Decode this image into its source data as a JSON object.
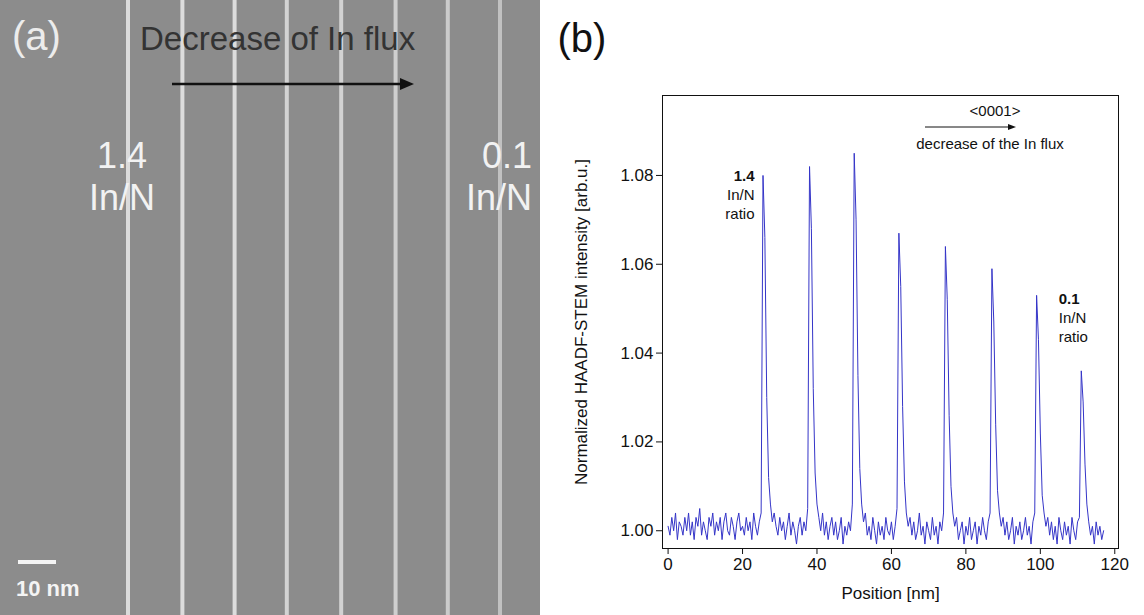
{
  "panel_a": {
    "label": "(a)",
    "arrow_text": "Decrease of In flux",
    "left_annotation": [
      "1.4",
      "In/N"
    ],
    "right_annotation": [
      "0.1",
      "In/N"
    ],
    "scale_bar": "10 nm"
  },
  "chart_data": {
    "type": "line",
    "panel_label": "(b)",
    "x_label": "Position [nm]",
    "y_label": "Normalized HAADF-STEM intensity [arb.u.]",
    "color": "#3535c8",
    "annotations": {
      "left": [
        "1.4",
        "In/N",
        "ratio"
      ],
      "right": [
        "0.1",
        "In/N",
        "ratio"
      ],
      "direction": "<0001>",
      "direction_text": "decrease of the In flux"
    },
    "xlim": [
      -1.5,
      121
    ],
    "xticks": [
      0,
      20,
      40,
      60,
      80,
      100,
      120
    ],
    "ylim": [
      0.996,
      1.098
    ],
    "yticks": [
      {
        "value": 1.0,
        "label": "1.00"
      },
      {
        "value": 1.02,
        "label": "1.02"
      },
      {
        "value": 1.04,
        "label": "1.04"
      },
      {
        "value": 1.06,
        "label": "1.06"
      },
      {
        "value": 1.08,
        "label": "1.08"
      }
    ],
    "x": [
      0,
      0.5,
      1,
      1.5,
      2,
      2.5,
      3,
      3.5,
      4,
      4.5,
      5,
      5.5,
      6,
      6.5,
      7,
      7.5,
      8,
      8.5,
      9,
      9.5,
      10,
      10.5,
      11,
      11.5,
      12,
      12.5,
      13,
      13.5,
      14,
      14.5,
      15,
      15.5,
      16,
      16.5,
      17,
      17.5,
      18,
      18.5,
      19,
      19.5,
      20,
      20.5,
      21,
      21.5,
      22,
      22.5,
      23,
      23.5,
      24,
      24.5,
      25,
      25.5,
      26,
      26.5,
      27,
      27.5,
      28,
      28.5,
      29,
      29.5,
      30,
      30.5,
      31,
      31.5,
      32,
      32.5,
      33,
      33.5,
      34,
      34.5,
      35,
      35.5,
      36,
      36.5,
      37,
      37.5,
      38,
      38.5,
      39,
      39.5,
      40,
      40.5,
      41,
      41.5,
      42,
      42.5,
      43,
      43.5,
      44,
      44.5,
      45,
      45.5,
      46,
      46.5,
      47,
      47.5,
      48,
      48.5,
      49,
      49.5,
      50,
      50.5,
      51,
      51.5,
      52,
      52.5,
      53,
      53.5,
      54,
      54.5,
      55,
      55.5,
      56,
      56.5,
      57,
      57.5,
      58,
      58.5,
      59,
      59.5,
      60,
      60.5,
      61,
      61.5,
      62,
      62.5,
      63,
      63.5,
      64,
      64.5,
      65,
      65.5,
      66,
      66.5,
      67,
      67.5,
      68,
      68.5,
      69,
      69.5,
      70,
      70.5,
      71,
      71.5,
      72,
      72.5,
      73,
      73.5,
      74,
      74.5,
      75,
      75.5,
      76,
      76.5,
      77,
      77.5,
      78,
      78.5,
      79,
      79.5,
      80,
      80.5,
      81,
      81.5,
      82,
      82.5,
      83,
      83.5,
      84,
      84.5,
      85,
      85.5,
      86,
      86.5,
      87,
      87.5,
      88,
      88.5,
      89,
      89.5,
      90,
      90.5,
      91,
      91.5,
      92,
      92.5,
      93,
      93.5,
      94,
      94.5,
      95,
      95.5,
      96,
      96.5,
      97,
      97.5,
      98,
      98.5,
      99,
      99.5,
      100,
      100.5,
      101,
      101.5,
      102,
      102.5,
      103,
      103.5,
      104,
      104.5,
      105,
      105.5,
      106,
      106.5,
      107,
      107.5,
      108,
      108.5,
      109,
      109.5,
      110,
      110.5,
      111,
      111.5,
      112,
      112.5,
      113,
      113.5,
      114,
      114.5,
      115,
      115.5,
      116,
      116.5,
      117
    ],
    "values": [
      1.001,
      0.999,
      1.003,
      1.0,
      1.004,
      0.998,
      1.002,
      1.001,
      0.999,
      1.003,
      1.0,
      1.004,
      0.999,
      1.002,
      0.998,
      1.003,
      1.001,
      1.005,
      0.999,
      1.002,
      1.0,
      0.998,
      1.003,
      1.001,
      1.004,
      0.999,
      1.002,
      1.0,
      1.003,
      0.998,
      1.002,
      1.004,
      1.0,
      0.999,
      1.003,
      1.001,
      0.998,
      1.002,
      1.004,
      1.0,
      1.001,
      0.999,
      1.003,
      1.0,
      1.002,
      0.998,
      1.004,
      1.001,
      0.999,
      1.002,
      1.004,
      1.08,
      1.066,
      1.03,
      1.012,
      1.006,
      1.002,
      1.004,
      1.001,
      0.999,
      1.003,
      1.0,
      1.002,
      0.998,
      1.001,
      1.004,
      0.999,
      1.002,
      1.0,
      0.997,
      1.001,
      1.003,
      0.999,
      1.002,
      1.0,
      1.005,
      1.082,
      1.068,
      1.032,
      1.013,
      1.006,
      1.003,
      1.0,
      1.004,
      0.999,
      1.002,
      0.998,
      1.001,
      1.003,
      0.999,
      1.002,
      0.998,
      1.0,
      1.003,
      0.997,
      1.001,
      0.999,
      1.002,
      1.0,
      1.006,
      1.085,
      1.07,
      1.035,
      1.014,
      1.006,
      1.002,
      1.004,
      0.999,
      1.001,
      0.998,
      1.003,
      1.0,
      0.997,
      1.002,
      0.999,
      1.001,
      0.998,
      1.003,
      1.0,
      0.999,
      1.002,
      0.998,
      1.001,
      1.005,
      1.067,
      1.055,
      1.028,
      1.011,
      1.004,
      1.001,
      1.003,
      0.999,
      1.002,
      0.998,
      1.0,
      1.004,
      0.999,
      1.001,
      0.997,
      1.002,
      1.0,
      0.998,
      1.003,
      0.999,
      1.001,
      0.997,
      1.002,
      1.0,
      1.004,
      1.064,
      1.052,
      1.026,
      1.01,
      1.004,
      1.001,
      1.003,
      0.998,
      1.0,
      1.002,
      0.997,
      1.001,
      0.999,
      1.003,
      0.998,
      1.0,
      1.002,
      0.997,
      1.001,
      0.999,
      1.003,
      1.0,
      0.998,
      1.002,
      1.004,
      1.059,
      1.047,
      1.024,
      1.009,
      1.004,
      1.001,
      1.003,
      0.999,
      1.002,
      0.998,
      1.0,
      1.003,
      0.997,
      1.001,
      0.999,
      1.002,
      0.998,
      1.0,
      1.003,
      0.999,
      1.001,
      0.997,
      1.002,
      1.004,
      1.053,
      1.043,
      1.022,
      1.008,
      1.004,
      1.001,
      1.003,
      0.999,
      1.002,
      0.998,
      1.001,
      0.997,
      1.003,
      1.0,
      0.998,
      1.002,
      0.999,
      1.001,
      0.997,
      1.003,
      1.0,
      0.998,
      1.002,
      1.003,
      1.036,
      1.029,
      1.015,
      1.006,
      1.002,
      0.999,
      1.001,
      0.997,
      1.002,
      0.999,
      1.001,
      0.998,
      1.0
    ]
  }
}
